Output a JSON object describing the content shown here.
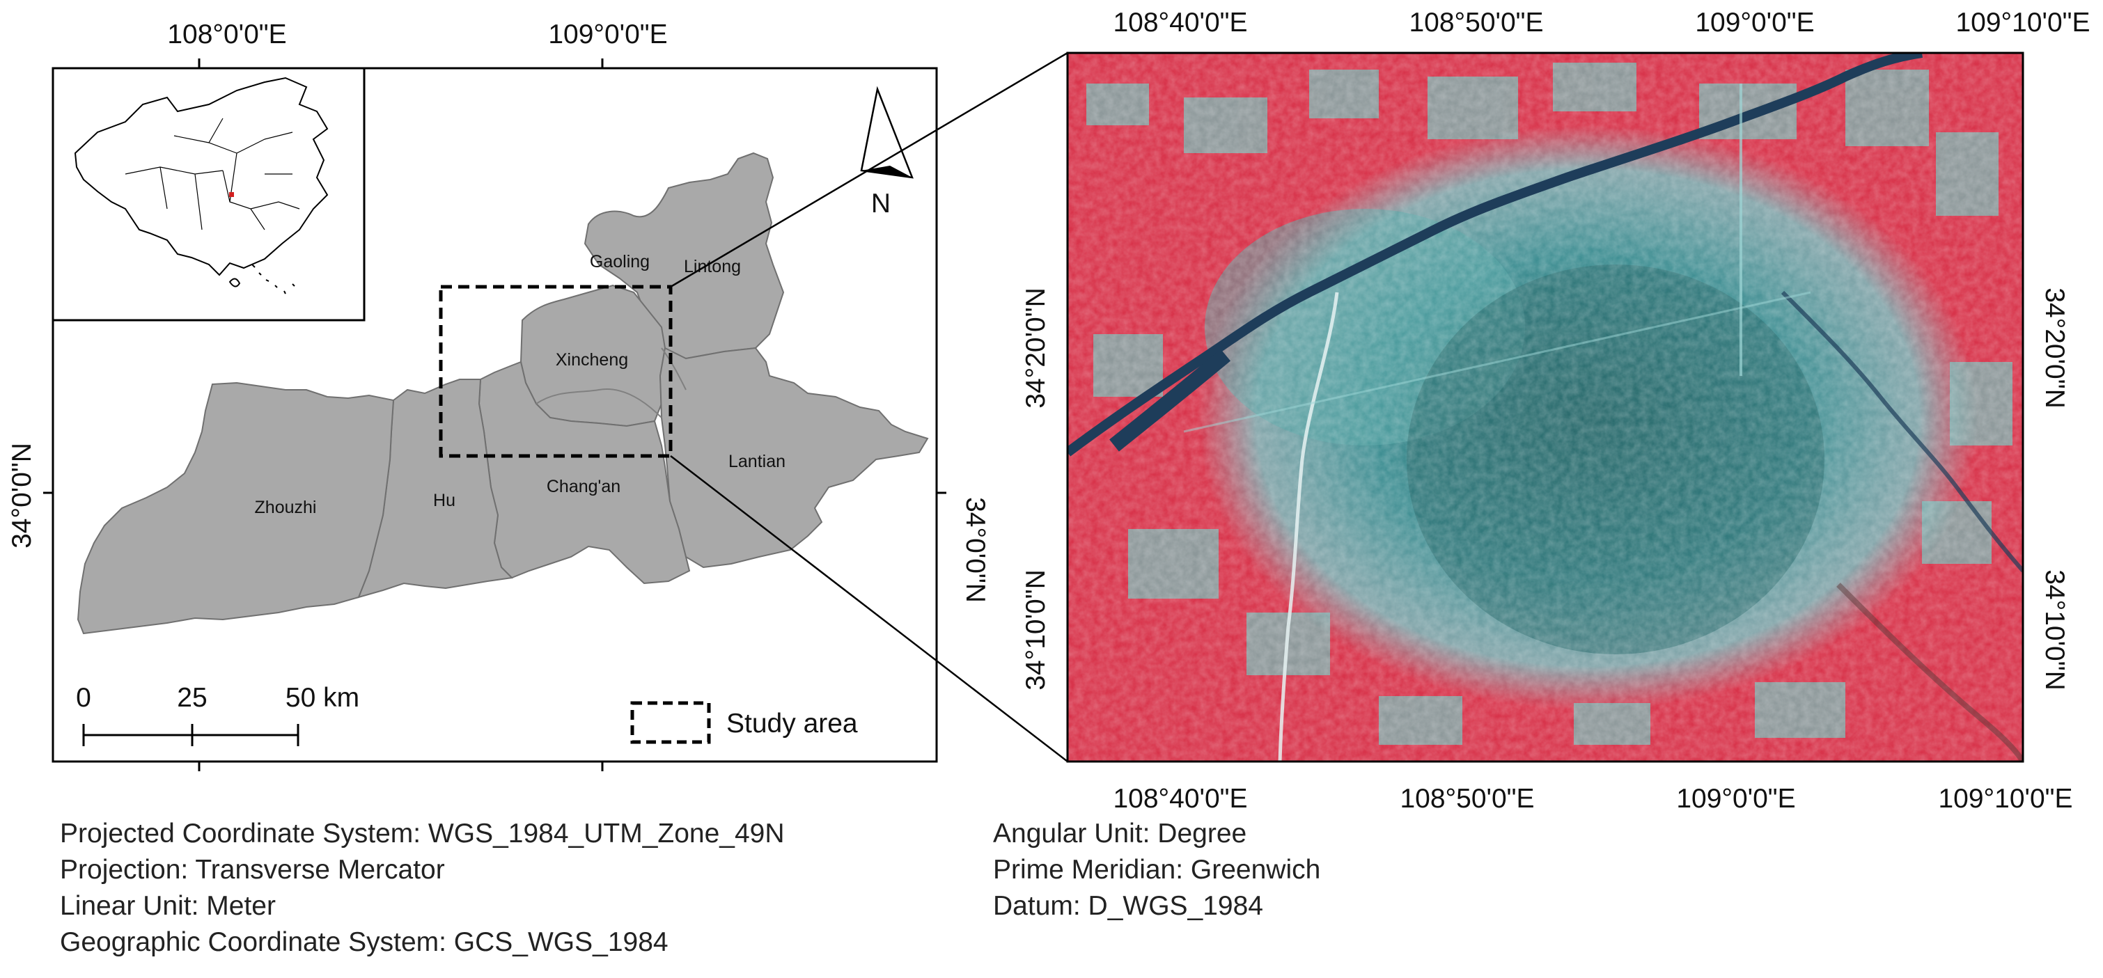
{
  "left_map": {
    "top_lon_labels": [
      "108°0'0\"E",
      "109°0'0\"E"
    ],
    "left_lat_label": "34°0'0\"N",
    "inner_lat_label": "34°0'0\"N",
    "districts": [
      "Gaoling",
      "Lintong",
      "Xincheng",
      "Zhouzhi",
      "Hu",
      "Chang'an",
      "Lantian"
    ],
    "north_label": "N",
    "scale_bar": {
      "ticks": [
        "0",
        "25",
        "50 km"
      ]
    },
    "legend": {
      "study_area_label": "Study area"
    }
  },
  "right_map": {
    "top_lon_labels": [
      "108°40'0\"E",
      "108°50'0\"E",
      "109°0'0\"E",
      "109°10'0\"E"
    ],
    "bottom_lon_labels": [
      "108°40'0\"E",
      "108°50'0\"E",
      "109°0'0\"E",
      "109°10'0\"E"
    ],
    "left_lat_labels": [
      "34°20'0\"N",
      "34°10'0\"N"
    ],
    "right_lat_labels": [
      "34°20'0\"N",
      "34°10'0\"N"
    ]
  },
  "metadata_left": [
    "Projected Coordinate System: WGS_1984_UTM_Zone_49N",
    "Projection: Transverse Mercator",
    "Linear Unit: Meter",
    "Geographic Coordinate System: GCS_WGS_1984"
  ],
  "metadata_right": [
    "Angular Unit: Degree",
    "Prime Meridian: Greenwich",
    "Datum: D_WGS_1984"
  ],
  "colors": {
    "district_fill": "#a9a9a9",
    "district_border": "#707070",
    "vegetation_red": "#e0324a",
    "urban_cyan": "#4fb2b2",
    "urban_core": "#2a6a6e",
    "river": "#1f3d5a"
  }
}
